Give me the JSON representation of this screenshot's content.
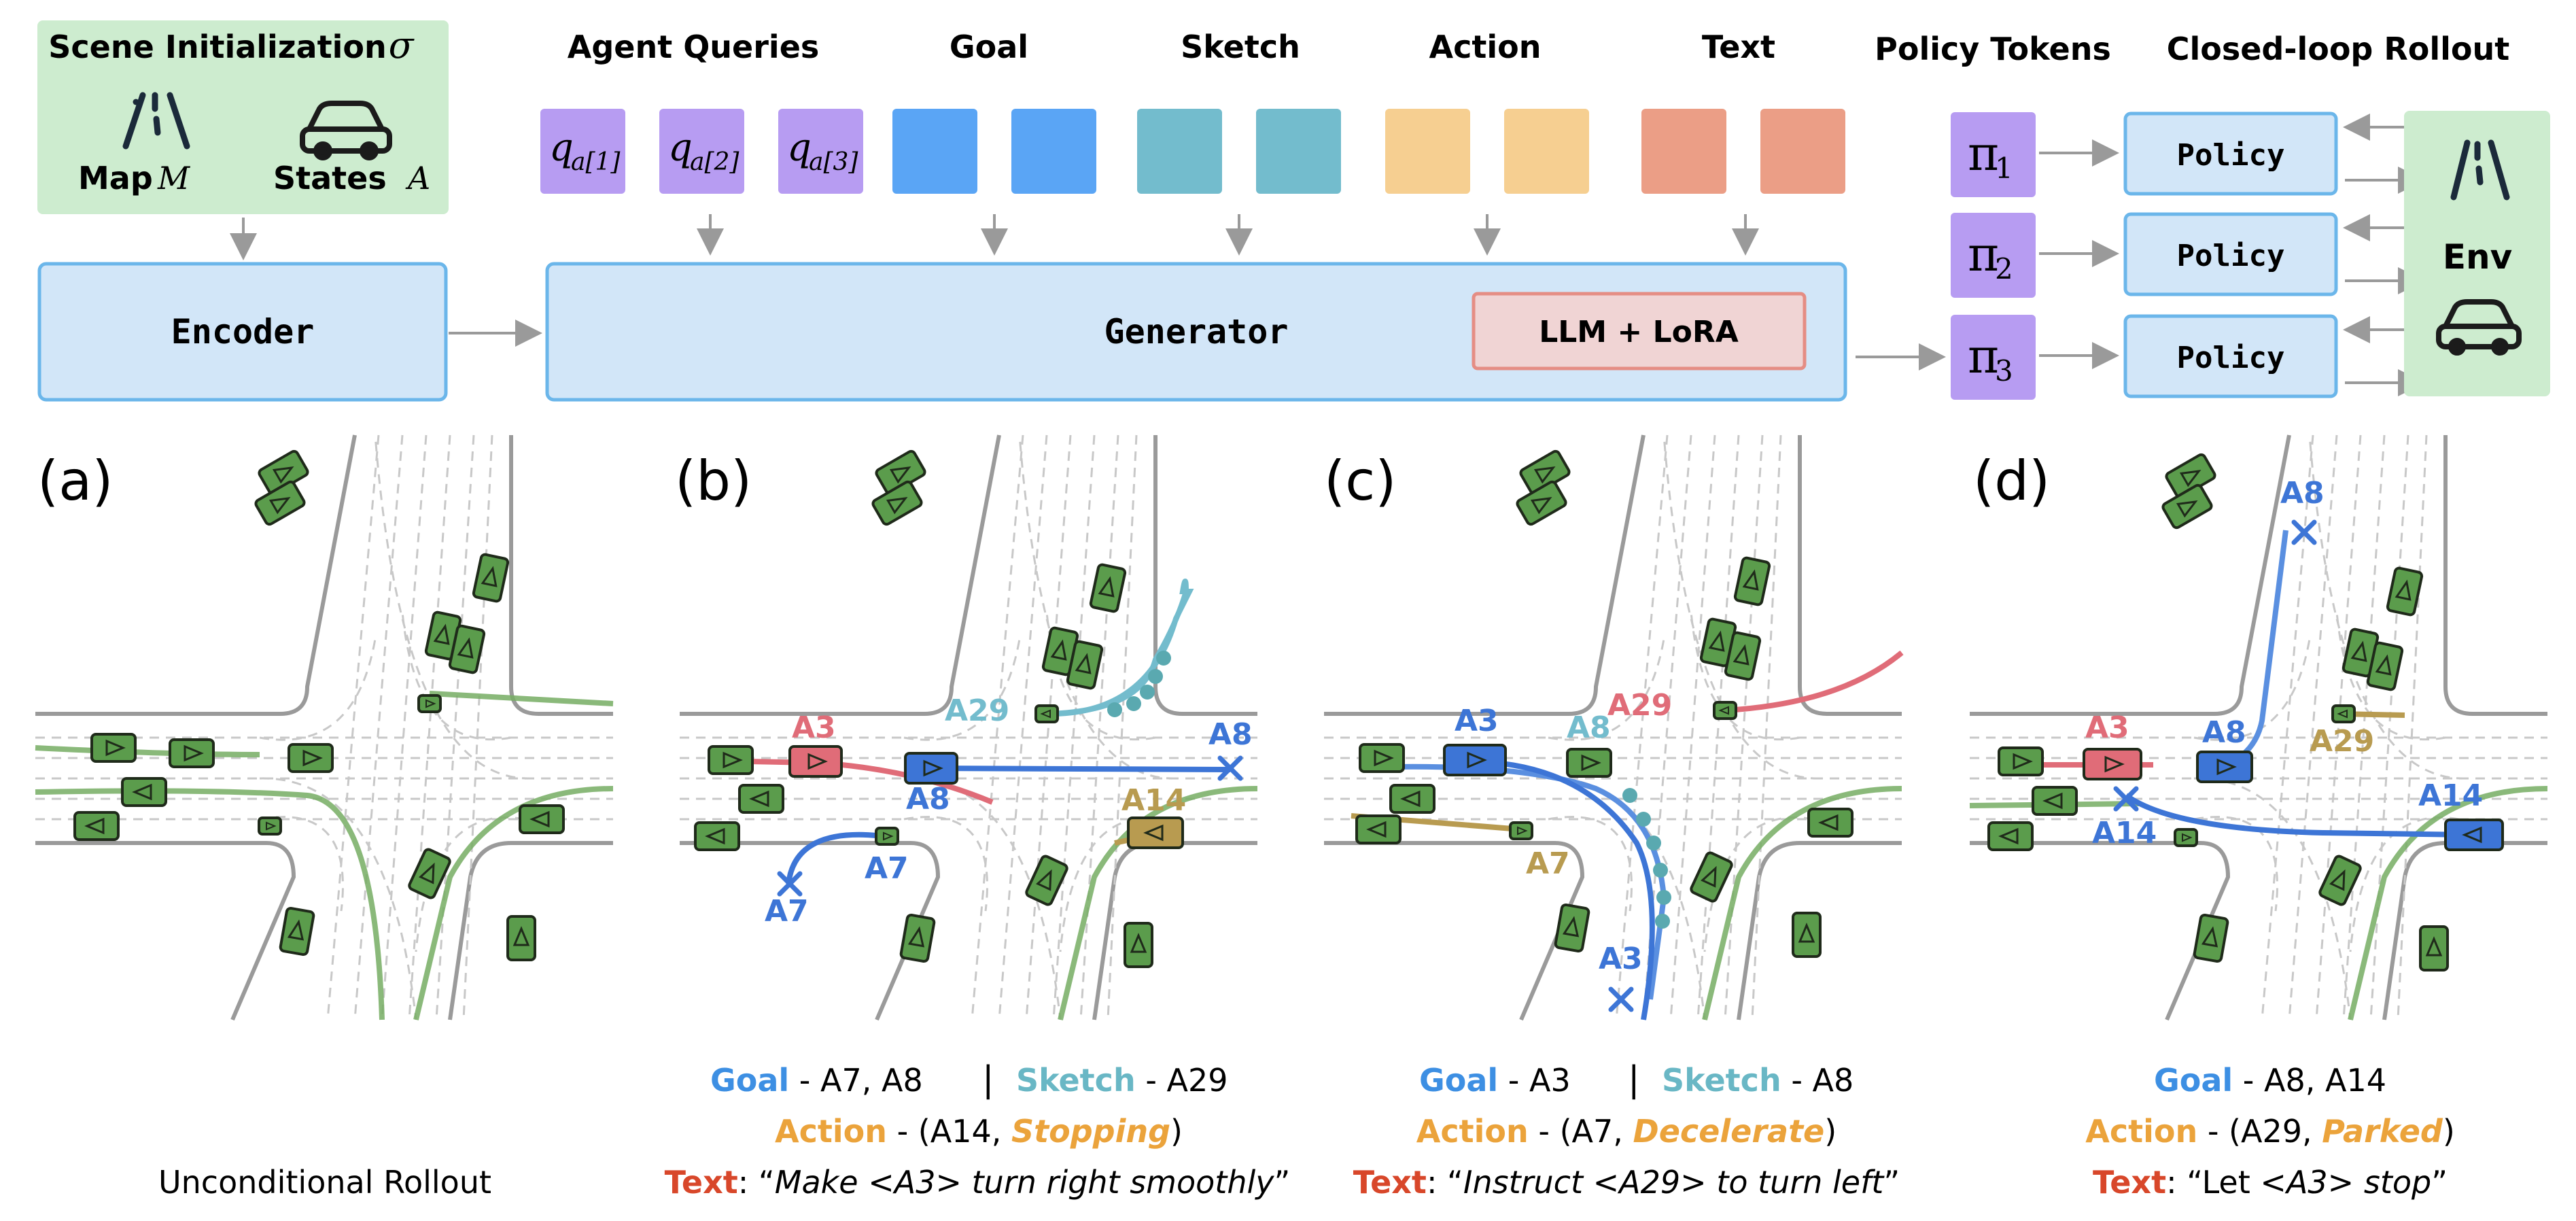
{
  "colors": {
    "green_box": "#cdeccf",
    "blue_box": "#d2e6f8",
    "blue_border": "#6bb6ea",
    "purple": "#b79cf2",
    "goal": "#5aa5f5",
    "sketch": "#73bccd",
    "action": "#f6cf91",
    "text": "#eb9e86",
    "lora_fill": "#f0d4d4",
    "lora_border": "#e58d84",
    "agent_green": "#5b9c4c",
    "traj_green": "#76ad63",
    "agent_red": "#e06c78",
    "agent_blue": "#3d75d6",
    "agent_gold": "#b89b50",
    "label_goal": "#3d8fe3",
    "label_sketch": "#69b7c5",
    "label_action": "#eba33b",
    "label_text": "#d8472a"
  },
  "top": {
    "scene_init": {
      "title": "Scene Initialization",
      "symbol": "σ",
      "map_label": "Map",
      "map_symbol": "M",
      "states_label": "States",
      "states_symbol": "A"
    },
    "encoder_label": "Encoder",
    "generator_label": "Generator",
    "lora_label": "LLM + LoRA",
    "groups": {
      "agent_queries": "Agent Queries",
      "goal": "Goal",
      "sketch": "Sketch",
      "action": "Action",
      "text": "Text",
      "policy_tokens": "Policy Tokens",
      "closed_loop": "Closed-loop Rollout"
    },
    "queries": [
      {
        "q": "q",
        "sub": "a[1]"
      },
      {
        "q": "q",
        "sub": "a[2]"
      },
      {
        "q": "q",
        "sub": "a[3]"
      }
    ],
    "policy_tokens": [
      {
        "pi": "π",
        "sub": "1"
      },
      {
        "pi": "π",
        "sub": "2"
      },
      {
        "pi": "π",
        "sub": "3"
      }
    ],
    "policy_label": "Policy",
    "env_label": "Env"
  },
  "panels": {
    "a": {
      "tag": "(a)",
      "caption": "Unconditional Rollout"
    },
    "b": {
      "tag": "(b)",
      "labels": [
        "A3",
        "A29",
        "A8",
        "A8",
        "A14",
        "A7",
        "A7"
      ],
      "cap_goal": "Goal",
      "cap_goal_val": " - A7, A8",
      "cap_sep": "|",
      "cap_sketch": "Sketch",
      "cap_sketch_val": " - A29",
      "cap_action": "Action",
      "cap_action_pre": " - (A14, ",
      "cap_action_em": "Stopping",
      "cap_action_post": ")",
      "cap_text": "Text",
      "cap_text_pre": ": “",
      "cap_text_em": "Make <A3> turn right smoothly",
      "cap_text_post": "”"
    },
    "c": {
      "tag": "(c)",
      "labels": [
        "A3",
        "A8",
        "A29",
        "A7",
        "A3"
      ],
      "cap_goal": "Goal",
      "cap_goal_val": " - A3",
      "cap_sep": "|",
      "cap_sketch": "Sketch",
      "cap_sketch_val": " - A8",
      "cap_action": "Action",
      "cap_action_pre": " - (A7, ",
      "cap_action_em": "Decelerate",
      "cap_action_post": ")",
      "cap_text": "Text",
      "cap_text_pre": ": “",
      "cap_text_em": "Instruct <A29> to turn left",
      "cap_text_post": "”"
    },
    "d": {
      "tag": "(d)",
      "labels": [
        "A8",
        "A3",
        "A8",
        "A29",
        "A14",
        "A14"
      ],
      "cap_goal": "Goal",
      "cap_goal_val": " - A8, A14",
      "cap_action": "Action",
      "cap_action_pre": " - (A29, ",
      "cap_action_em": "Parked",
      "cap_action_post": ")",
      "cap_text": "Text",
      "cap_text_pre": ": “Let ",
      "cap_text_em": "<A3> stop",
      "cap_text_post": "”"
    }
  }
}
